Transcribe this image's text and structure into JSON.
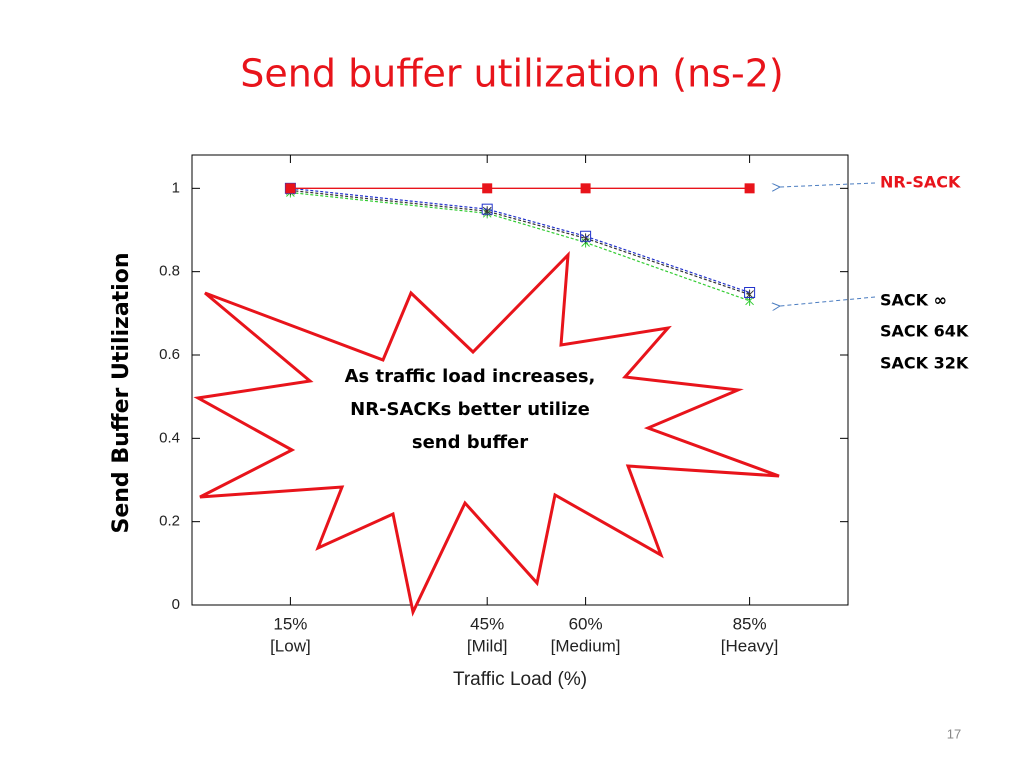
{
  "chart_data": {
    "type": "line",
    "title": "Send buffer utilization (ns-2)",
    "x_label": "Traffic Load (%)",
    "y_label": "Send Buffer Utilization",
    "x": [
      15,
      45,
      60,
      85
    ],
    "xticks": [
      {
        "value": 15,
        "label": "15%"
      },
      {
        "value": 45,
        "label": "45%"
      },
      {
        "value": 60,
        "label": "60%"
      },
      {
        "value": 85,
        "label": "85%"
      }
    ],
    "x_sublabels": [
      "[Low]",
      "[Mild]",
      "[Medium]",
      "[Heavy]"
    ],
    "xlim": [
      0,
      100
    ],
    "ylim": [
      0,
      1.08
    ],
    "yticks": [
      0,
      0.2,
      0.4,
      0.6,
      0.8,
      1
    ],
    "grid": false,
    "series": [
      {
        "name": "NR-SACK",
        "color": "#e8141b",
        "dashed": false,
        "marker": "filled-square",
        "values": [
          1,
          1,
          1,
          1
        ]
      },
      {
        "name": "SACK ∞",
        "color": "#2233cc",
        "dashed": true,
        "marker": "open-square",
        "values": [
          1,
          0.95,
          0.885,
          0.75
        ]
      },
      {
        "name": "SACK  64K",
        "color": "#333333",
        "dashed": true,
        "marker": "cross",
        "values": [
          0.995,
          0.945,
          0.88,
          0.745
        ]
      },
      {
        "name": "SACK  32K",
        "color": "#33cc33",
        "dashed": true,
        "marker": "cross",
        "values": [
          0.99,
          0.94,
          0.87,
          0.73
        ]
      }
    ],
    "annotation": [
      "As traffic load increases,",
      "NR-SACKs better utilize",
      "send buffer"
    ]
  },
  "page_number": "17"
}
